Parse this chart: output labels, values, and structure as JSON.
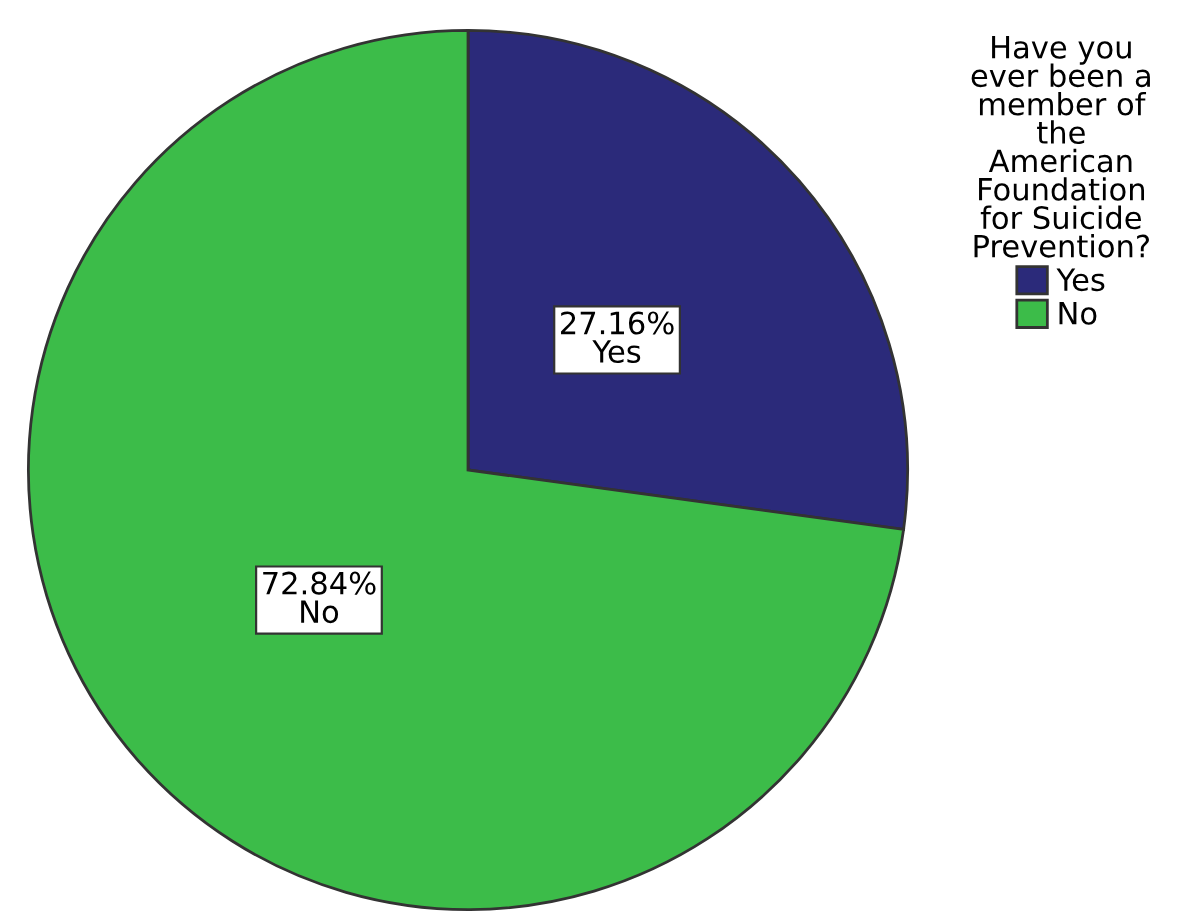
{
  "chart_data": {
    "type": "pie",
    "categories": [
      "Yes",
      "No"
    ],
    "values": [
      27.16,
      72.84
    ],
    "colors": [
      "#2b2a7a",
      "#3cbc49"
    ],
    "value_labels": [
      "27.16%\nYes",
      "72.84%\nNo"
    ],
    "legend_title": "Have you\never been a\nmember of\nthe\nAmerican\nFoundation\nfor Suicide\nPrevention?",
    "legend": "right"
  }
}
